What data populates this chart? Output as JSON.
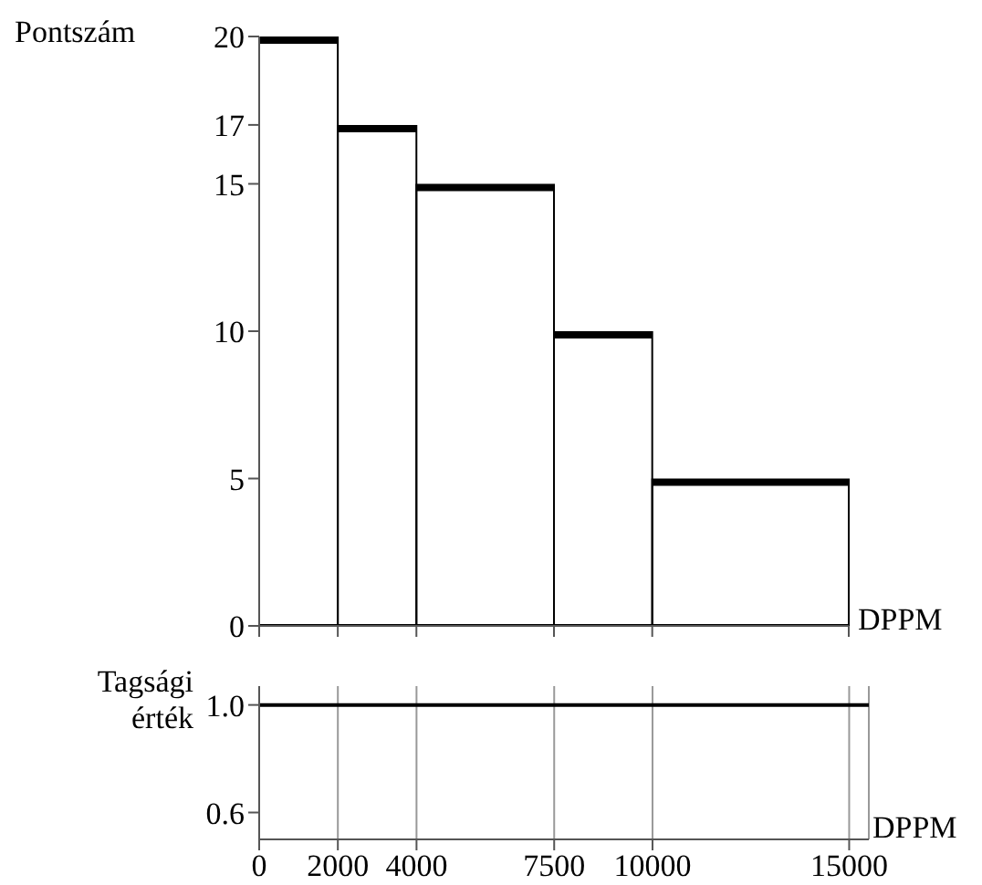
{
  "chart_data": [
    {
      "type": "histogram",
      "ylabel": "Pontszám",
      "xlabel": "DPPM",
      "bins": [
        0,
        2000,
        4000,
        7500,
        10000,
        15000
      ],
      "values": [
        20,
        17,
        15,
        10,
        5
      ],
      "color": "#000000",
      "xlim": [
        0,
        15000
      ],
      "xticks": [
        0,
        2000,
        4000,
        7500,
        10000,
        15000
      ],
      "ylim": [
        0,
        20
      ],
      "yticks": [
        0,
        5,
        10,
        15,
        17,
        20
      ],
      "tick_labels": "y"
    },
    {
      "type": "line",
      "ylabel": "Tagsági érték",
      "xlabel": "DPPM",
      "series": [
        {
          "color": "#000000",
          "x": [
            0,
            15500
          ],
          "values": [
            1,
            1
          ]
        }
      ],
      "xlim": [
        0,
        15500
      ],
      "xticks": [
        0,
        2000,
        4000,
        7500,
        10000,
        15000
      ],
      "ylim": [
        0.5,
        1.07
      ],
      "yticks": [
        0.6,
        {
          "value": 1,
          "label": "1.0"
        }
      ],
      "grid": "x"
    }
  ]
}
